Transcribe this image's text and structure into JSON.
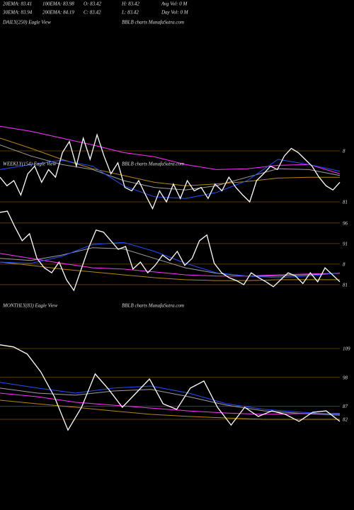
{
  "header": {
    "rows": [
      [
        "20EMA: 83.41",
        "100EMA: 83.98",
        "O: 83.42",
        "H: 83.42",
        "Avg Vol: 0  M"
      ],
      [
        "30EMA: 83.94",
        "200EMA: 84.19",
        "C: 83.42",
        "L: 83.42",
        "Day Vol: 0  M"
      ]
    ]
  },
  "chart_data": [
    {
      "type": "line",
      "title": "DAILY(250) Eagle  View",
      "subtitle": "BBLB charts MunafaSutra.com",
      "ylim": [
        80,
        90
      ],
      "yticks": [
        {
          "value": 87,
          "label": "8"
        },
        81
      ],
      "grid": true,
      "series": [
        {
          "color": "#a0a0a0",
          "values": [
            87.7,
            86.4,
            85.4,
            84.8,
            83.5,
            82.7,
            82.4,
            82.9,
            83.9,
            84.9,
            84.8,
            84.1
          ]
        },
        {
          "color": "#b8860b",
          "values": [
            88.5,
            87.3,
            86.0,
            84.9,
            84.1,
            83.3,
            82.9,
            83.1,
            83.4,
            83.8,
            83.9,
            83.9
          ]
        },
        {
          "color": "#ff33ff",
          "values": [
            89.9,
            89.3,
            88.5,
            87.7,
            86.8,
            86.3,
            85.4,
            84.8,
            84.9,
            85.3,
            85.4,
            84.3
          ]
        },
        {
          "color": "#2050ff",
          "values": [
            84.8,
            85.4,
            85.9,
            85.2,
            82.9,
            81.6,
            81.4,
            82.1,
            83.5,
            86.0,
            85.4,
            84.6
          ]
        },
        {
          "color": "#ffffff",
          "values": [
            83.9,
            82.9,
            83.5,
            81.8,
            84.3,
            85.2,
            83.3,
            84.8,
            83.9,
            86.8,
            88.1,
            85.2,
            88.5,
            86.0,
            88.9,
            86.4,
            84.3,
            85.6,
            82.7,
            82.3,
            83.5,
            81.8,
            80.2,
            82.3,
            81.0,
            83.1,
            81.4,
            83.5,
            82.3,
            82.7,
            81.4,
            83.1,
            82.3,
            83.9,
            82.7,
            81.8,
            81.0,
            83.5,
            84.3,
            85.2,
            84.8,
            86.4,
            87.3,
            86.8,
            86.0,
            85.2,
            83.9,
            82.9,
            82.4,
            83.3
          ]
        }
      ]
    },
    {
      "type": "line",
      "title": "WEEKLY(154) Eagle  View",
      "subtitle": "BBLB charts MunafaSutra.com",
      "ylim": [
        79.5,
        99
      ],
      "yticks": [
        96,
        91,
        {
          "value": 86,
          "label": "8"
        },
        81
      ],
      "grid": true,
      "series": [
        {
          "color": "#a0a0a0",
          "values": [
            87.4,
            86.9,
            88.2,
            90.0,
            89.7,
            87.4,
            85.1,
            83.8,
            83.1,
            83.1,
            83.4,
            83.8
          ]
        },
        {
          "color": "#b8860b",
          "values": [
            86.5,
            85.7,
            84.8,
            84.1,
            83.4,
            82.7,
            82.2,
            82.0,
            82.0,
            82.2,
            82.2,
            82.2
          ]
        },
        {
          "color": "#ff33ff",
          "values": [
            88.6,
            87.4,
            86.2,
            85.1,
            84.8,
            84.1,
            83.4,
            83.1,
            83.1,
            83.4,
            83.6,
            83.8
          ]
        },
        {
          "color": "#2050ff",
          "values": [
            86.5,
            86.2,
            87.9,
            90.8,
            91.3,
            89.1,
            86.2,
            83.9,
            83.1,
            82.7,
            83.1,
            83.9
          ]
        },
        {
          "color": "#ffffff",
          "values": [
            98.6,
            98.9,
            95.1,
            91.7,
            93.4,
            87.4,
            85.1,
            83.9,
            86.5,
            82.2,
            79.6,
            84.8,
            90.0,
            94.3,
            93.8,
            91.7,
            89.6,
            90.3,
            84.8,
            86.5,
            83.9,
            85.7,
            88.2,
            86.9,
            89.1,
            85.7,
            87.4,
            91.7,
            93.1,
            86.2,
            83.9,
            82.7,
            82.0,
            81.0,
            83.9,
            82.7,
            81.7,
            80.5,
            82.2,
            83.9,
            83.1,
            81.3,
            83.9,
            81.7,
            85.1,
            83.4,
            81.7
          ]
        }
      ]
    },
    {
      "type": "line",
      "title": "MONTHLY(83) Eagle  View",
      "subtitle": "BBLB charts MunafaSutra.com",
      "ylim": [
        77,
        113
      ],
      "yticks": [
        109,
        98,
        87,
        82
      ],
      "grid": true,
      "series": [
        {
          "color": "#a0a0a0",
          "values": [
            93.9,
            92.0,
            91.2,
            92.8,
            93.4,
            90.6,
            87.4,
            85.2,
            84.2,
            83.6
          ]
        },
        {
          "color": "#b8860b",
          "values": [
            89.3,
            87.9,
            86.6,
            85.2,
            83.9,
            83.1,
            82.5,
            82.0,
            82.0,
            82.0
          ]
        },
        {
          "color": "#ff33ff",
          "values": [
            92.0,
            90.6,
            88.5,
            87.4,
            86.3,
            85.2,
            84.4,
            83.9,
            84.2,
            84.2
          ]
        },
        {
          "color": "#2050ff",
          "values": [
            96.1,
            93.9,
            92.0,
            93.9,
            94.7,
            92.0,
            87.9,
            85.8,
            84.7,
            83.9
          ]
        },
        {
          "color": "#ffffff",
          "values": [
            110.4,
            109.6,
            106.9,
            100.1,
            90.6,
            77.9,
            86.6,
            99.3,
            93.4,
            86.6,
            92.0,
            97.4,
            87.9,
            85.8,
            93.9,
            96.6,
            86.6,
            79.8,
            86.6,
            83.1,
            85.2,
            83.9,
            81.2,
            84.7,
            85.2,
            81.2
          ]
        }
      ]
    }
  ]
}
